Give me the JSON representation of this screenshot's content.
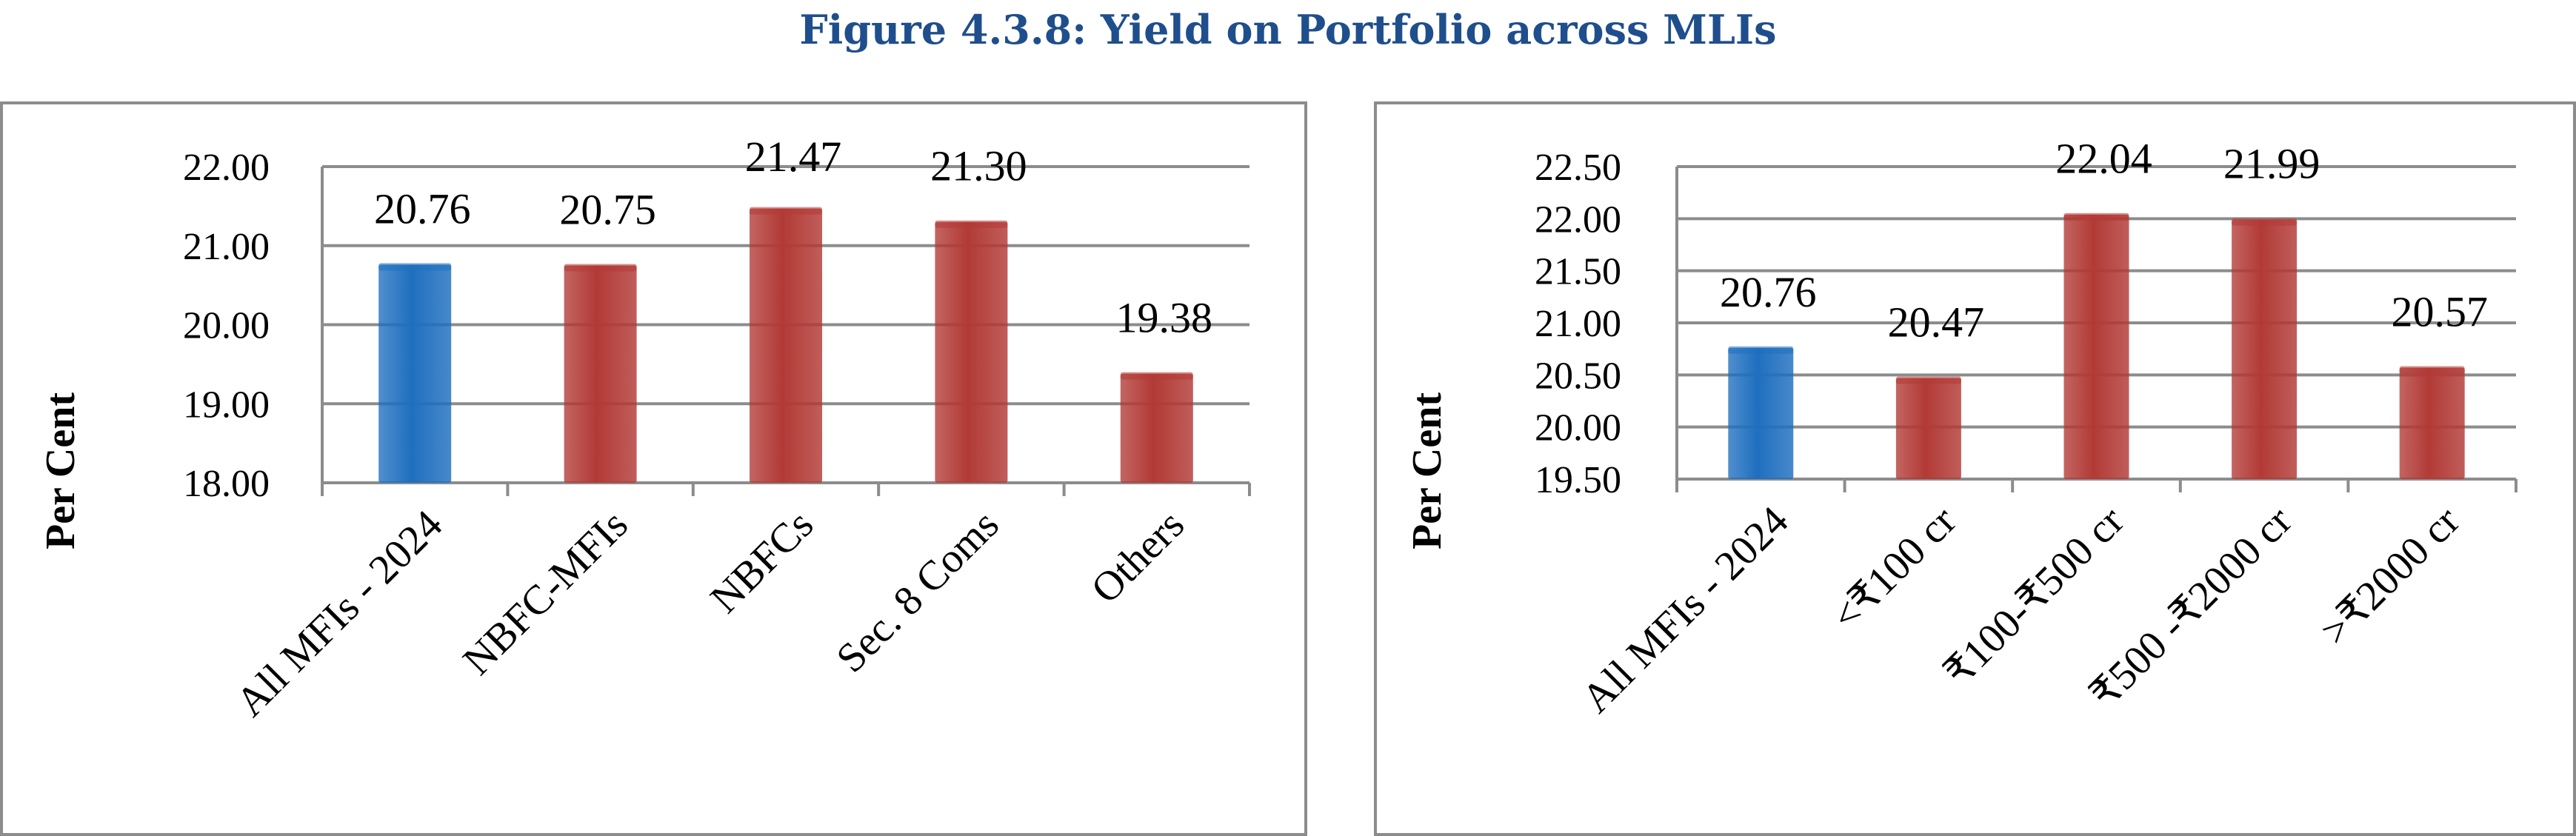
{
  "figure": {
    "title": "Figure 4.3.8: Yield on Portfolio across MLIs"
  },
  "colors": {
    "highlight": "#1f6fbf",
    "bars": "#b23a36",
    "grid": "#8c8c8c",
    "title": "#1f4e8c"
  },
  "chart_data": [
    {
      "type": "bar",
      "title": "",
      "xlabel": "",
      "ylabel": "Per Cent",
      "ylim": [
        18.0,
        22.0
      ],
      "yticks": [
        "18.00",
        "19.00",
        "20.00",
        "21.00",
        "22.00"
      ],
      "grid": true,
      "categories": [
        "All MFIs - 2024",
        "NBFC-MFIs",
        "NBFCs",
        "Sec. 8 Coms",
        "Others"
      ],
      "values": [
        20.76,
        20.75,
        21.47,
        21.3,
        19.38
      ],
      "data_labels": [
        "20.76",
        "20.75",
        "21.47",
        "21.30",
        "19.38"
      ],
      "highlight_index": 0
    },
    {
      "type": "bar",
      "title": "",
      "xlabel": "",
      "ylabel": "Per Cent",
      "ylim": [
        19.5,
        22.5
      ],
      "yticks": [
        "19.50",
        "20.00",
        "20.50",
        "21.00",
        "21.50",
        "22.00",
        "22.50"
      ],
      "grid": true,
      "categories": [
        "All MFIs - 2024",
        "<₹100 cr",
        "₹100-₹500 cr",
        "₹500 -₹2000 cr",
        ">₹2000 cr"
      ],
      "values": [
        20.76,
        20.47,
        22.04,
        21.99,
        20.57
      ],
      "data_labels": [
        "20.76",
        "20.47",
        "22.04",
        "21.99",
        "20.57"
      ],
      "highlight_index": 0
    }
  ]
}
